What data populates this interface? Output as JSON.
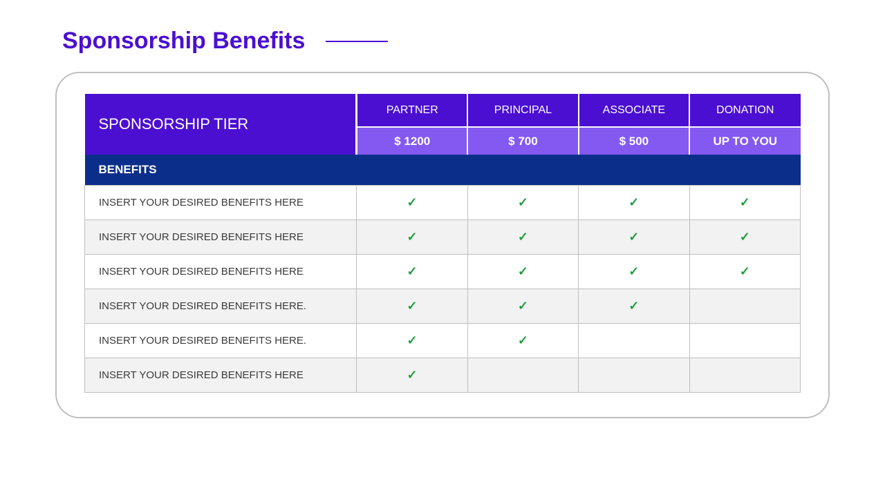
{
  "colors": {
    "title": "#4b0fd1",
    "tier_header_bg": "#4b0fd1",
    "tier_price_bg": "#8459f2",
    "benefits_header_bg": "#0a2e8a",
    "row_alt_bg": "#f2f2f2",
    "row_bg": "#ffffff",
    "border": "#bfbfbf",
    "check": "#1e9e3e",
    "text": "#3a3a3a"
  },
  "title": "Sponsorship Benefits",
  "table": {
    "tier_label": "SPONSORSHIP TIER",
    "benefits_header": "BENEFITS",
    "tiers": [
      {
        "name": "PARTNER",
        "price": "$ 1200"
      },
      {
        "name": "PRINCIPAL",
        "price": "$ 700"
      },
      {
        "name": "ASSOCIATE",
        "price": "$ 500"
      },
      {
        "name": "DONATION",
        "price": "UP TO YOU"
      }
    ],
    "rows": [
      {
        "label": "INSERT YOUR DESIRED BENEFITS HERE",
        "checks": [
          true,
          true,
          true,
          true
        ]
      },
      {
        "label": "INSERT YOUR DESIRED BENEFITS HERE",
        "checks": [
          true,
          true,
          true,
          true
        ]
      },
      {
        "label": "INSERT YOUR DESIRED BENEFITS HERE",
        "checks": [
          true,
          true,
          true,
          true
        ]
      },
      {
        "label": "INSERT YOUR DESIRED BENEFITS HERE.",
        "checks": [
          true,
          true,
          true,
          false
        ]
      },
      {
        "label": "INSERT YOUR DESIRED BENEFITS HERE.",
        "checks": [
          true,
          true,
          false,
          false
        ]
      },
      {
        "label": "INSERT YOUR DESIRED BENEFITS HERE",
        "checks": [
          true,
          false,
          false,
          false
        ]
      }
    ]
  }
}
